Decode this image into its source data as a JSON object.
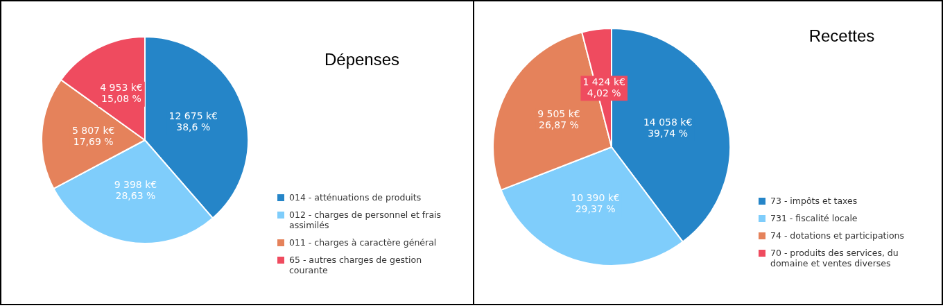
{
  "chart_data": [
    {
      "type": "pie",
      "title": "Dépenses",
      "categories": [
        "014 - atténuations de produits",
        "012 - charges de personnel et frais assimilés",
        "011 - charges à caractère général",
        "65 - autres charges de gestion courante"
      ],
      "values": [
        12675,
        9398,
        5807,
        4953
      ],
      "colors": [
        "#2585c8",
        "#7fcdfb",
        "#e5825b",
        "#ef4b5f"
      ],
      "value_labels": [
        "12 675 k€\n38,6 %",
        "9 398 k€\n28,63 %",
        "5 807 k€\n17,69 %",
        "4 953 k€\n15,08 %"
      ],
      "legend": "bottom right"
    },
    {
      "type": "pie",
      "title": "Recettes",
      "categories": [
        "73 - impôts et taxes",
        "731 - fiscalité locale",
        "74 - dotations et participations",
        "70 - produits des services, du domaine et ventes diverses"
      ],
      "values": [
        14058,
        10390,
        9505,
        1424
      ],
      "colors": [
        "#2585c8",
        "#7fcdfb",
        "#e5825b",
        "#ef4b5f"
      ],
      "value_labels": [
        "14 058 k€\n39,74 %",
        "10 390 k€\n29,37 %",
        "9 505 k€\n26,87 %",
        "1 424 k€\n4,02 %"
      ],
      "legend": "bottom right"
    }
  ]
}
